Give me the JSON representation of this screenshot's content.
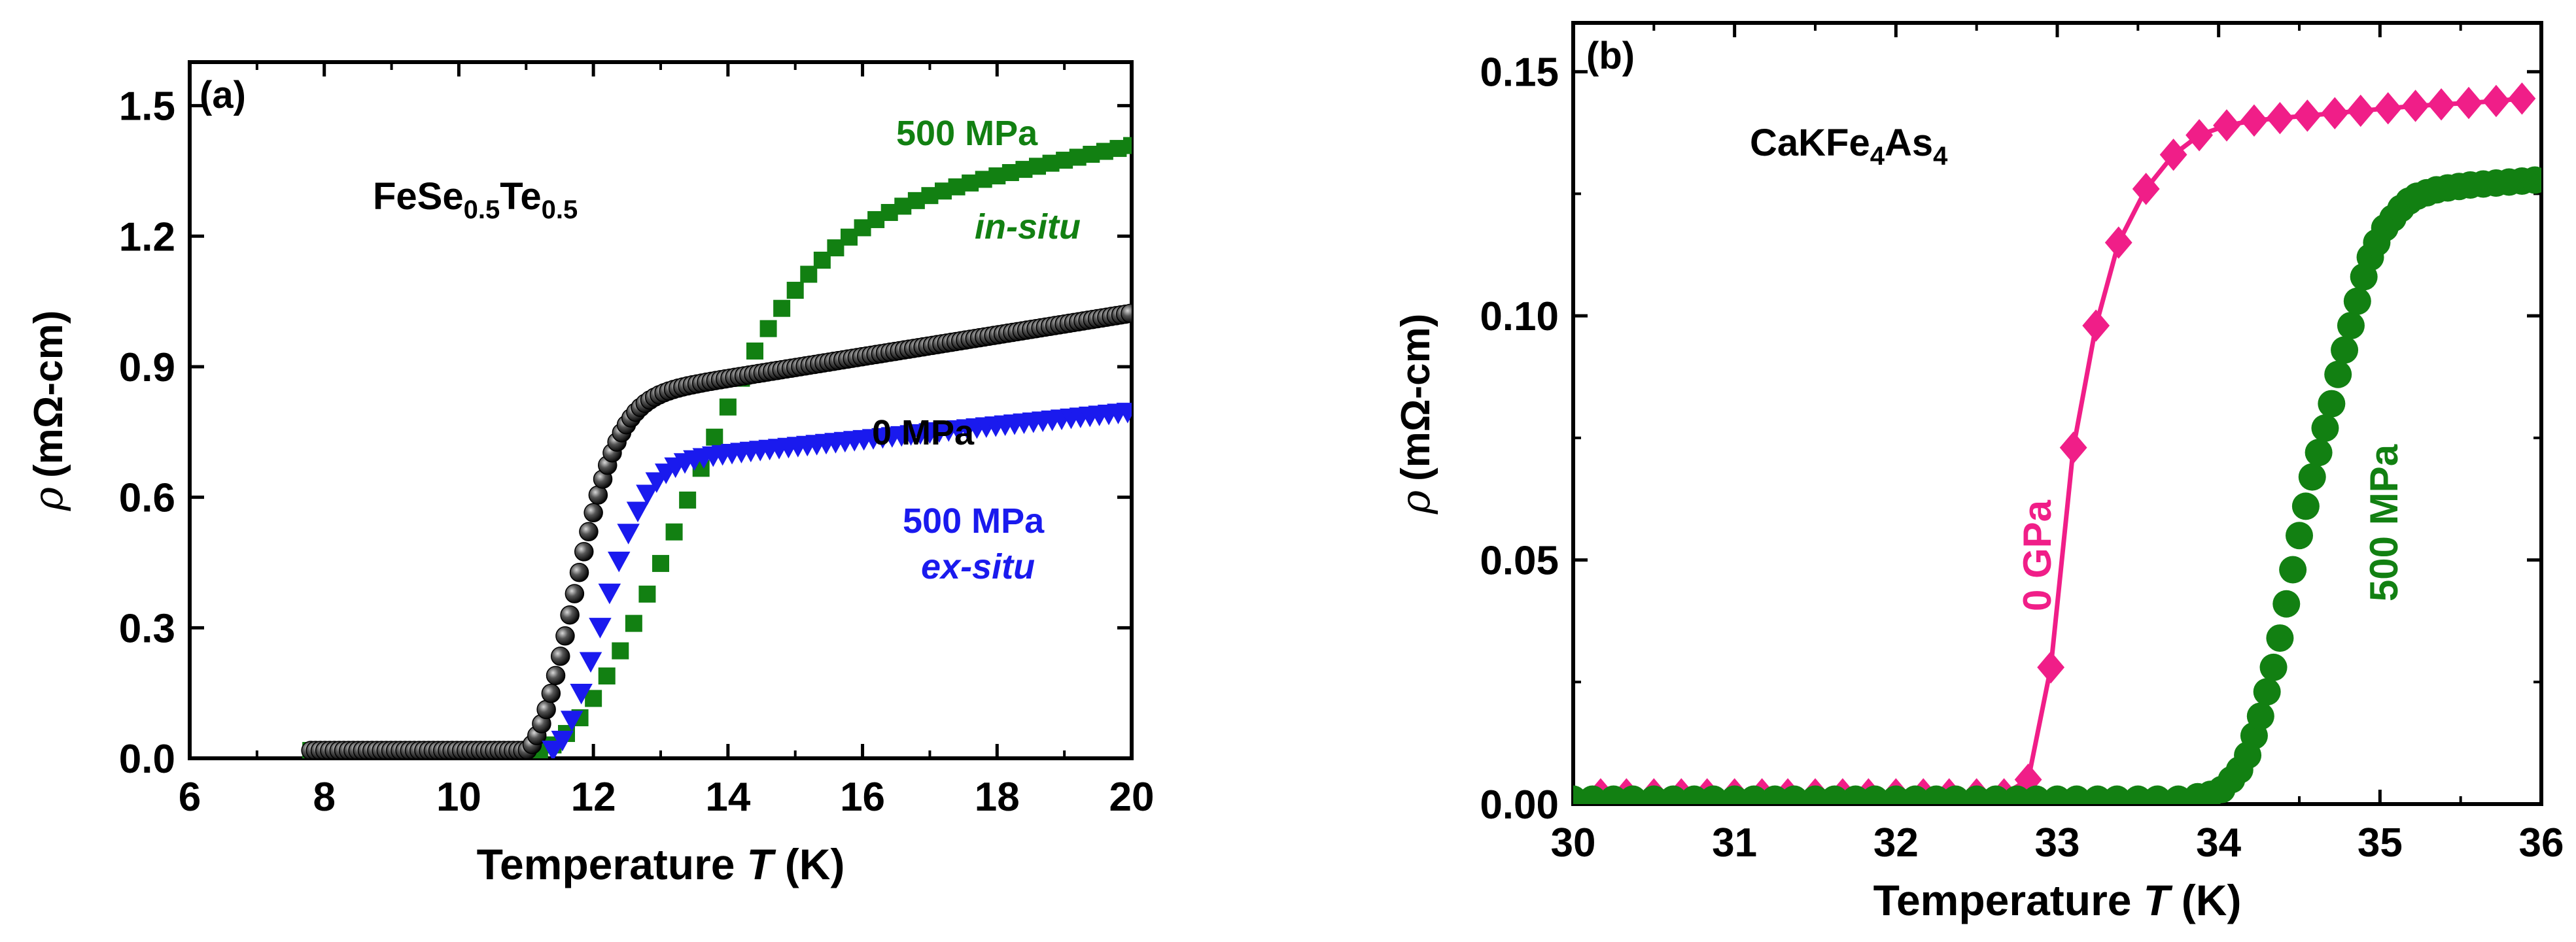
{
  "chart_data": [
    {
      "panel": "(a)",
      "type": "scatter",
      "sample": "FeSe",
      "sample_sub1": "0.5",
      "sample_mid": "Te",
      "sample_sub2": "0.5",
      "xlabel": "Temperature",
      "xlabel_italic": "T",
      "xlabel_unit": "(K)",
      "ylabel_symbol": "ρ",
      "ylabel": "(mΩ-cm)",
      "xlim": [
        6,
        20
      ],
      "ylim": [
        0,
        1.6
      ],
      "xticks": [
        "6",
        "8",
        "10",
        "12",
        "14",
        "16",
        "18",
        "20"
      ],
      "xtick_values": [
        6,
        8,
        10,
        12,
        14,
        16,
        18,
        20
      ],
      "yticks": [
        "0.0",
        "0.3",
        "0.6",
        "0.9",
        "1.2",
        "1.5"
      ],
      "ytick_values": [
        0,
        0.3,
        0.6,
        0.9,
        1.2,
        1.5
      ],
      "series": [
        {
          "name": "500 MPa in-situ",
          "color": "#128012",
          "marker": "square",
          "onset": 11.2,
          "baseline": 0.018,
          "hw": 1.6,
          "plateau": 1.1,
          "slope": 0.033,
          "xstart": 7.8,
          "xend": 20,
          "step": 0.2
        },
        {
          "name": "0 MPa",
          "color": "#111111",
          "marker": "sphere",
          "onset": 11.0,
          "baseline": 0.018,
          "hw": 0.55,
          "plateau": 0.78,
          "slope": 0.025,
          "xstart": 7.8,
          "xend": 20,
          "step": 0.07
        },
        {
          "name": "500 MPa ex-situ",
          "color": "#1a1aee",
          "marker": "triangle-down",
          "onset": 11.4,
          "baseline": 0.018,
          "hw": 0.55,
          "plateau": 0.64,
          "slope": 0.016,
          "xstart": 11.4,
          "xend": 20,
          "step": 0.14
        }
      ],
      "labels": {
        "green_top": "500 MPa",
        "green_bottom": "in-situ",
        "black": "0 MPa",
        "blue_top": "500 MPa",
        "blue_bottom": "ex-situ"
      }
    },
    {
      "panel": "(b)",
      "type": "line",
      "sample": "CaKFe",
      "sample_sub1": "4",
      "sample_mid": "As",
      "sample_sub2": "4",
      "xlabel": "Temperature",
      "xlabel_italic": "T",
      "xlabel_unit": "(K)",
      "ylabel_symbol": "ρ",
      "ylabel": "(mΩ-cm)",
      "xlim": [
        30,
        36
      ],
      "ylim": [
        0,
        0.16
      ],
      "xticks": [
        "30",
        "31",
        "32",
        "33",
        "34",
        "35",
        "36"
      ],
      "xtick_values": [
        30,
        31,
        32,
        33,
        34,
        35,
        36
      ],
      "yticks": [
        "0.00",
        "0.05",
        "0.10",
        "0.15"
      ],
      "ytick_values": [
        0,
        0.05,
        0.1,
        0.15
      ],
      "series": [
        {
          "name": "0 GPa",
          "color": "#f01e88",
          "marker": "diamond",
          "x": [
            30.17,
            30.33,
            30.5,
            30.67,
            30.83,
            31.0,
            31.17,
            31.33,
            31.5,
            31.67,
            31.83,
            32.0,
            32.17,
            32.33,
            32.5,
            32.67,
            32.82,
            32.96,
            33.1,
            33.24,
            33.38,
            33.55,
            33.72,
            33.88,
            34.05,
            34.22,
            34.38,
            34.55,
            34.72,
            34.88,
            35.05,
            35.22,
            35.38,
            35.55,
            35.72,
            35.88
          ],
          "y": [
            0.002,
            0.002,
            0.002,
            0.002,
            0.002,
            0.002,
            0.002,
            0.002,
            0.002,
            0.002,
            0.002,
            0.002,
            0.002,
            0.002,
            0.002,
            0.002,
            0.005,
            0.028,
            0.073,
            0.098,
            0.115,
            0.126,
            0.133,
            0.137,
            0.139,
            0.14,
            0.1405,
            0.141,
            0.1415,
            0.142,
            0.1425,
            0.143,
            0.1433,
            0.1436,
            0.144,
            0.1445
          ]
        },
        {
          "name": "500 MPa",
          "color": "#128012",
          "marker": "circle",
          "x": [
            30.0,
            30.12,
            30.25,
            30.37,
            30.5,
            30.62,
            30.75,
            30.87,
            31.0,
            31.12,
            31.25,
            31.37,
            31.5,
            31.62,
            31.75,
            31.87,
            32.0,
            32.12,
            32.25,
            32.37,
            32.5,
            32.62,
            32.75,
            32.87,
            33.0,
            33.12,
            33.25,
            33.37,
            33.5,
            33.62,
            33.75,
            33.87,
            33.95,
            34.02,
            34.08,
            34.13,
            34.18,
            34.22,
            34.26,
            34.3,
            34.34,
            34.38,
            34.42,
            34.46,
            34.5,
            34.54,
            34.58,
            34.62,
            34.66,
            34.7,
            34.74,
            34.78,
            34.82,
            34.86,
            34.9,
            34.94,
            34.98,
            35.03,
            35.08,
            35.13,
            35.18,
            35.23,
            35.29,
            35.35,
            35.42,
            35.49,
            35.56,
            35.64,
            35.72,
            35.8,
            35.88,
            35.96
          ],
          "y": [
            0.001,
            0.001,
            0.001,
            0.001,
            0.001,
            0.001,
            0.001,
            0.001,
            0.001,
            0.001,
            0.001,
            0.001,
            0.001,
            0.001,
            0.001,
            0.001,
            0.001,
            0.001,
            0.001,
            0.001,
            0.001,
            0.001,
            0.001,
            0.001,
            0.001,
            0.001,
            0.001,
            0.001,
            0.001,
            0.001,
            0.001,
            0.0015,
            0.002,
            0.003,
            0.005,
            0.007,
            0.01,
            0.014,
            0.018,
            0.023,
            0.028,
            0.034,
            0.041,
            0.048,
            0.055,
            0.061,
            0.067,
            0.072,
            0.077,
            0.082,
            0.088,
            0.093,
            0.098,
            0.103,
            0.108,
            0.112,
            0.115,
            0.118,
            0.12,
            0.122,
            0.1235,
            0.1245,
            0.1252,
            0.1258,
            0.1262,
            0.1265,
            0.1268,
            0.127,
            0.1272,
            0.1274,
            0.1276,
            0.1278
          ]
        }
      ],
      "labels": {
        "pink": "0 GPa",
        "green": "500 MPa"
      }
    }
  ]
}
